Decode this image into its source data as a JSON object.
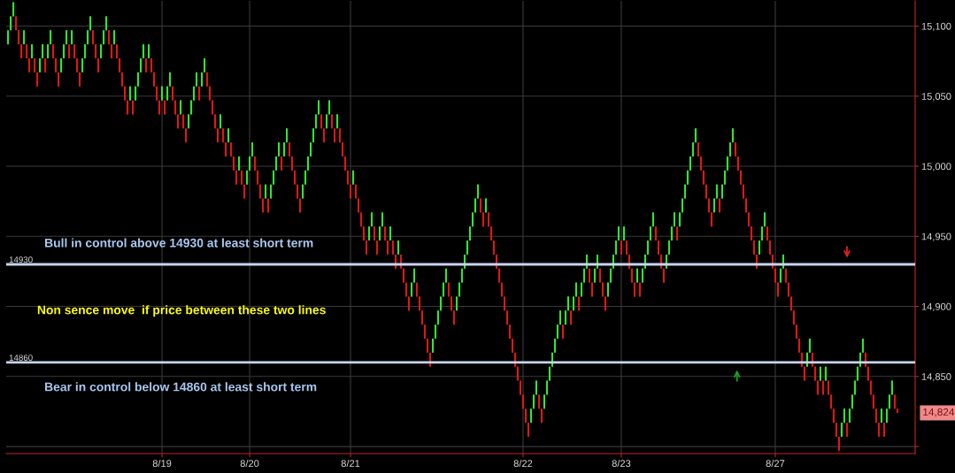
{
  "chart_data": {
    "type": "candlestick",
    "categories": [
      null,
      null,
      null,
      null,
      null,
      null,
      null,
      null,
      null,
      null,
      null,
      null,
      null,
      null,
      null,
      null,
      null,
      null,
      null,
      null,
      null,
      null,
      null,
      null,
      null,
      null,
      null,
      null,
      null,
      null,
      null,
      null,
      null,
      null,
      null,
      null,
      null,
      null,
      null,
      null,
      null,
      null,
      null,
      null,
      null,
      null,
      null,
      null,
      null,
      null,
      null,
      null,
      null,
      null,
      null,
      null,
      null,
      null,
      "8/19",
      null,
      null,
      null,
      null,
      null,
      null,
      null,
      null,
      null,
      null,
      null,
      null,
      null,
      null,
      null,
      null,
      null,
      null,
      null,
      null,
      null,
      null,
      null,
      null,
      null,
      null,
      null,
      null,
      null,
      null,
      null,
      null,
      "8/20",
      null,
      null,
      null,
      null,
      null,
      null,
      null,
      null,
      null,
      null,
      null,
      null,
      null,
      null,
      null,
      null,
      null,
      null,
      null,
      null,
      null,
      null,
      null,
      null,
      null,
      null,
      null,
      null,
      null,
      null,
      null,
      null,
      null,
      null,
      null,
      null,
      null,
      "8/21",
      null,
      null,
      null,
      null,
      null,
      null,
      null,
      null,
      null,
      null,
      null,
      null,
      null,
      null,
      null,
      null,
      null,
      null,
      null,
      null,
      null,
      null,
      null,
      null,
      null,
      null,
      null,
      null,
      null,
      null,
      null,
      null,
      null,
      null,
      null,
      null,
      null,
      null,
      null,
      null,
      null,
      null,
      null,
      null,
      null,
      null,
      null,
      null,
      null,
      null,
      null,
      null,
      null,
      null,
      null,
      null,
      null,
      null,
      null,
      null,
      null,
      null,
      null,
      null,
      "8/22",
      null,
      null,
      null,
      null,
      null,
      null,
      null,
      null,
      null,
      null,
      null,
      null,
      null,
      null,
      null,
      null,
      null,
      null,
      null,
      null,
      null,
      null,
      null,
      null,
      null,
      null,
      null,
      null,
      null,
      null,
      null,
      null,
      null,
      null,
      null,
      null,
      "8/23",
      null,
      null,
      null,
      null,
      null,
      null,
      null,
      null,
      null,
      null,
      null,
      null,
      null,
      null,
      null,
      null,
      null,
      null,
      null,
      null,
      null,
      null,
      null,
      null,
      null,
      null,
      null,
      null,
      null,
      null,
      null,
      null,
      null,
      null,
      null,
      null,
      null,
      null,
      null,
      null,
      null,
      null,
      null,
      null,
      null,
      null,
      null,
      null,
      null,
      null,
      null,
      null,
      null,
      null,
      null,
      null,
      null,
      "8/27",
      null,
      null,
      null,
      null,
      null,
      null,
      null,
      null,
      null,
      null,
      null,
      null,
      null,
      null,
      null,
      null,
      null,
      null,
      null,
      null,
      null,
      null,
      null,
      null,
      null,
      null,
      null,
      null,
      null,
      null,
      null,
      null,
      null,
      null,
      null,
      null,
      null,
      null,
      null,
      null,
      null,
      null,
      null,
      null,
      null,
      null
    ],
    "ohlc": [
      [
        15087,
        15097,
        15087,
        15097
      ],
      [
        15097,
        15107,
        15097,
        15107
      ],
      [
        15107,
        15117,
        15107,
        15117
      ],
      [
        15107,
        15107,
        15097,
        15097
      ],
      [
        15097,
        15097,
        15087,
        15087
      ],
      [
        15087,
        15087,
        15077,
        15077
      ],
      [
        15087,
        15097,
        15087,
        15097
      ],
      [
        15087,
        15087,
        15077,
        15077
      ],
      [
        15077,
        15077,
        15067,
        15067
      ],
      [
        15077,
        15087,
        15077,
        15087
      ],
      [
        15077,
        15077,
        15067,
        15067
      ],
      [
        15067,
        15067,
        15057,
        15057
      ],
      [
        15067,
        15077,
        15067,
        15077
      ],
      [
        15077,
        15087,
        15077,
        15087
      ],
      [
        15077,
        15077,
        15067,
        15067
      ],
      [
        15077,
        15087,
        15077,
        15087
      ],
      [
        15087,
        15097,
        15087,
        15097
      ],
      [
        15087,
        15087,
        15077,
        15077
      ],
      [
        15077,
        15077,
        15067,
        15067
      ],
      [
        15067,
        15067,
        15057,
        15057
      ],
      [
        15067,
        15077,
        15067,
        15077
      ],
      [
        15077,
        15087,
        15077,
        15087
      ],
      [
        15087,
        15097,
        15087,
        15097
      ],
      [
        15087,
        15087,
        15077,
        15077
      ],
      [
        15087,
        15097,
        15087,
        15097
      ],
      [
        15087,
        15087,
        15077,
        15077
      ],
      [
        15077,
        15077,
        15067,
        15067
      ],
      [
        15067,
        15067,
        15057,
        15057
      ],
      [
        15067,
        15077,
        15067,
        15077
      ],
      [
        15077,
        15087,
        15077,
        15087
      ],
      [
        15087,
        15097,
        15087,
        15097
      ],
      [
        15097,
        15107,
        15097,
        15107
      ],
      [
        15097,
        15097,
        15087,
        15087
      ],
      [
        15087,
        15087,
        15077,
        15077
      ],
      [
        15077,
        15077,
        15067,
        15067
      ],
      [
        15077,
        15087,
        15077,
        15087
      ],
      [
        15087,
        15097,
        15087,
        15097
      ],
      [
        15097,
        15107,
        15097,
        15107
      ],
      [
        15097,
        15097,
        15087,
        15087
      ],
      [
        15087,
        15087,
        15077,
        15077
      ],
      [
        15087,
        15097,
        15087,
        15097
      ],
      [
        15087,
        15087,
        15077,
        15077
      ],
      [
        15077,
        15077,
        15067,
        15067
      ],
      [
        15067,
        15067,
        15057,
        15057
      ],
      [
        15057,
        15057,
        15047,
        15047
      ],
      [
        15047,
        15047,
        15037,
        15037
      ],
      [
        15047,
        15057,
        15047,
        15057
      ],
      [
        15047,
        15047,
        15037,
        15037
      ],
      [
        15047,
        15057,
        15047,
        15057
      ],
      [
        15057,
        15067,
        15057,
        15067
      ],
      [
        15067,
        15077,
        15067,
        15077
      ],
      [
        15077,
        15087,
        15077,
        15087
      ],
      [
        15077,
        15077,
        15067,
        15067
      ],
      [
        15077,
        15087,
        15077,
        15087
      ],
      [
        15077,
        15077,
        15067,
        15067
      ],
      [
        15067,
        15067,
        15057,
        15057
      ],
      [
        15057,
        15057,
        15047,
        15047
      ],
      [
        15047,
        15047,
        15037,
        15037
      ],
      [
        15047,
        15057,
        15047,
        15057
      ],
      [
        15047,
        15047,
        15037,
        15037
      ],
      [
        15047,
        15057,
        15047,
        15057
      ],
      [
        15057,
        15067,
        15057,
        15067
      ],
      [
        15057,
        15057,
        15047,
        15047
      ],
      [
        15047,
        15047,
        15037,
        15037
      ],
      [
        15037,
        15037,
        15027,
        15027
      ],
      [
        15037,
        15047,
        15037,
        15047
      ],
      [
        15037,
        15037,
        15027,
        15027
      ],
      [
        15027,
        15027,
        15017,
        15017
      ],
      [
        15027,
        15037,
        15027,
        15037
      ],
      [
        15037,
        15047,
        15037,
        15047
      ],
      [
        15047,
        15057,
        15047,
        15057
      ],
      [
        15057,
        15067,
        15057,
        15067
      ],
      [
        15057,
        15057,
        15047,
        15047
      ],
      [
        15057,
        15067,
        15057,
        15067
      ],
      [
        15067,
        15077,
        15067,
        15077
      ],
      [
        15067,
        15067,
        15057,
        15057
      ],
      [
        15057,
        15057,
        15047,
        15047
      ],
      [
        15047,
        15047,
        15037,
        15037
      ],
      [
        15037,
        15037,
        15027,
        15027
      ],
      [
        15027,
        15027,
        15017,
        15017
      ],
      [
        15027,
        15037,
        15027,
        15037
      ],
      [
        15027,
        15027,
        15017,
        15017
      ],
      [
        15017,
        15017,
        15007,
        15007
      ],
      [
        15017,
        15027,
        15017,
        15027
      ],
      [
        15017,
        15017,
        15007,
        15007
      ],
      [
        15007,
        15007,
        14997,
        14997
      ],
      [
        14997,
        14997,
        14987,
        14987
      ],
      [
        14997,
        15007,
        14997,
        15007
      ],
      [
        14997,
        14997,
        14987,
        14987
      ],
      [
        14987,
        14987,
        14977,
        14977
      ],
      [
        14987,
        14997,
        14987,
        14997
      ],
      [
        14997,
        15007,
        14997,
        15007
      ],
      [
        15007,
        15017,
        15007,
        15017
      ],
      [
        15007,
        15007,
        14997,
        14997
      ],
      [
        14997,
        14997,
        14987,
        14987
      ],
      [
        14987,
        14987,
        14977,
        14977
      ],
      [
        14977,
        14977,
        14967,
        14967
      ],
      [
        14977,
        14987,
        14977,
        14987
      ],
      [
        14977,
        14977,
        14967,
        14967
      ],
      [
        14977,
        14987,
        14977,
        14987
      ],
      [
        14987,
        14997,
        14987,
        14997
      ],
      [
        14997,
        15007,
        14997,
        15007
      ],
      [
        15007,
        15017,
        15007,
        15017
      ],
      [
        15007,
        15007,
        14997,
        14997
      ],
      [
        15007,
        15017,
        15007,
        15017
      ],
      [
        15017,
        15027,
        15017,
        15027
      ],
      [
        15017,
        15017,
        15007,
        15007
      ],
      [
        15007,
        15007,
        14997,
        14997
      ],
      [
        14997,
        14997,
        14987,
        14987
      ],
      [
        14987,
        14987,
        14977,
        14977
      ],
      [
        14977,
        14977,
        14967,
        14967
      ],
      [
        14977,
        14987,
        14977,
        14987
      ],
      [
        14987,
        14997,
        14987,
        14997
      ],
      [
        14997,
        15007,
        14997,
        15007
      ],
      [
        15007,
        15017,
        15007,
        15017
      ],
      [
        15017,
        15027,
        15017,
        15027
      ],
      [
        15027,
        15037,
        15027,
        15037
      ],
      [
        15037,
        15047,
        15037,
        15047
      ],
      [
        15037,
        15037,
        15027,
        15027
      ],
      [
        15027,
        15027,
        15017,
        15017
      ],
      [
        15027,
        15037,
        15027,
        15037
      ],
      [
        15037,
        15047,
        15037,
        15047
      ],
      [
        15037,
        15037,
        15027,
        15027
      ],
      [
        15027,
        15027,
        15017,
        15017
      ],
      [
        15027,
        15037,
        15027,
        15037
      ],
      [
        15027,
        15027,
        15017,
        15017
      ],
      [
        15017,
        15017,
        15007,
        15007
      ],
      [
        15007,
        15007,
        14997,
        14997
      ],
      [
        14997,
        14997,
        14987,
        14987
      ],
      [
        14987,
        14987,
        14977,
        14977
      ],
      [
        14987,
        14997,
        14987,
        14997
      ],
      [
        14987,
        14987,
        14977,
        14977
      ],
      [
        14977,
        14977,
        14967,
        14967
      ],
      [
        14967,
        14967,
        14957,
        14957
      ],
      [
        14957,
        14957,
        14947,
        14947
      ],
      [
        14947,
        14947,
        14937,
        14937
      ],
      [
        14947,
        14957,
        14947,
        14957
      ],
      [
        14957,
        14967,
        14957,
        14967
      ],
      [
        14957,
        14957,
        14947,
        14947
      ],
      [
        14947,
        14947,
        14937,
        14937
      ],
      [
        14947,
        14957,
        14947,
        14957
      ],
      [
        14957,
        14967,
        14957,
        14967
      ],
      [
        14957,
        14957,
        14947,
        14947
      ],
      [
        14947,
        14947,
        14937,
        14937
      ],
      [
        14947,
        14957,
        14947,
        14957
      ],
      [
        14947,
        14947,
        14937,
        14937
      ],
      [
        14937,
        14937,
        14927,
        14927
      ],
      [
        14937,
        14947,
        14937,
        14947
      ],
      [
        14937,
        14937,
        14927,
        14927
      ],
      [
        14927,
        14927,
        14917,
        14917
      ],
      [
        14917,
        14917,
        14907,
        14907
      ],
      [
        14907,
        14907,
        14897,
        14897
      ],
      [
        14907,
        14917,
        14907,
        14917
      ],
      [
        14917,
        14927,
        14917,
        14927
      ],
      [
        14917,
        14917,
        14907,
        14907
      ],
      [
        14907,
        14907,
        14897,
        14897
      ],
      [
        14897,
        14897,
        14887,
        14887
      ],
      [
        14887,
        14887,
        14877,
        14877
      ],
      [
        14877,
        14877,
        14867,
        14867
      ],
      [
        14867,
        14867,
        14857,
        14857
      ],
      [
        14867,
        14877,
        14867,
        14877
      ],
      [
        14877,
        14887,
        14877,
        14887
      ],
      [
        14887,
        14897,
        14887,
        14897
      ],
      [
        14897,
        14907,
        14897,
        14907
      ],
      [
        14907,
        14917,
        14907,
        14917
      ],
      [
        14917,
        14927,
        14917,
        14927
      ],
      [
        14917,
        14917,
        14907,
        14907
      ],
      [
        14907,
        14907,
        14897,
        14897
      ],
      [
        14897,
        14897,
        14887,
        14887
      ],
      [
        14897,
        14907,
        14897,
        14907
      ],
      [
        14907,
        14917,
        14907,
        14917
      ],
      [
        14917,
        14927,
        14917,
        14927
      ],
      [
        14927,
        14937,
        14927,
        14937
      ],
      [
        14937,
        14947,
        14937,
        14947
      ],
      [
        14947,
        14957,
        14947,
        14957
      ],
      [
        14957,
        14967,
        14957,
        14967
      ],
      [
        14967,
        14977,
        14967,
        14977
      ],
      [
        14977,
        14987,
        14977,
        14987
      ],
      [
        14977,
        14977,
        14967,
        14967
      ],
      [
        14967,
        14967,
        14957,
        14957
      ],
      [
        14967,
        14977,
        14967,
        14977
      ],
      [
        14967,
        14967,
        14957,
        14957
      ],
      [
        14957,
        14957,
        14947,
        14947
      ],
      [
        14947,
        14947,
        14937,
        14937
      ],
      [
        14937,
        14937,
        14927,
        14927
      ],
      [
        14927,
        14927,
        14917,
        14917
      ],
      [
        14917,
        14917,
        14907,
        14907
      ],
      [
        14907,
        14907,
        14897,
        14897
      ],
      [
        14897,
        14897,
        14887,
        14887
      ],
      [
        14887,
        14887,
        14877,
        14877
      ],
      [
        14877,
        14877,
        14867,
        14867
      ],
      [
        14867,
        14867,
        14857,
        14857
      ],
      [
        14857,
        14857,
        14847,
        14847
      ],
      [
        14847,
        14847,
        14837,
        14837
      ],
      [
        14837,
        14837,
        14827,
        14827
      ],
      [
        14827,
        14827,
        14817,
        14817
      ],
      [
        14817,
        14817,
        14807,
        14807
      ],
      [
        14817,
        14827,
        14817,
        14827
      ],
      [
        14827,
        14837,
        14827,
        14837
      ],
      [
        14837,
        14847,
        14837,
        14847
      ],
      [
        14837,
        14837,
        14827,
        14827
      ],
      [
        14827,
        14827,
        14817,
        14817
      ],
      [
        14827,
        14837,
        14827,
        14837
      ],
      [
        14837,
        14847,
        14837,
        14847
      ],
      [
        14847,
        14857,
        14847,
        14857
      ],
      [
        14857,
        14867,
        14857,
        14867
      ],
      [
        14867,
        14877,
        14867,
        14877
      ],
      [
        14877,
        14887,
        14877,
        14887
      ],
      [
        14887,
        14897,
        14887,
        14897
      ],
      [
        14887,
        14887,
        14877,
        14877
      ],
      [
        14887,
        14897,
        14887,
        14897
      ],
      [
        14897,
        14907,
        14897,
        14907
      ],
      [
        14897,
        14897,
        14887,
        14887
      ],
      [
        14897,
        14907,
        14897,
        14907
      ],
      [
        14907,
        14917,
        14907,
        14917
      ],
      [
        14907,
        14907,
        14897,
        14897
      ],
      [
        14907,
        14917,
        14907,
        14917
      ],
      [
        14917,
        14927,
        14917,
        14927
      ],
      [
        14927,
        14937,
        14927,
        14937
      ],
      [
        14927,
        14927,
        14917,
        14917
      ],
      [
        14917,
        14917,
        14907,
        14907
      ],
      [
        14917,
        14927,
        14917,
        14927
      ],
      [
        14927,
        14937,
        14927,
        14937
      ],
      [
        14927,
        14927,
        14917,
        14917
      ],
      [
        14917,
        14917,
        14907,
        14907
      ],
      [
        14907,
        14907,
        14897,
        14897
      ],
      [
        14907,
        14917,
        14907,
        14917
      ],
      [
        14917,
        14927,
        14917,
        14927
      ],
      [
        14927,
        14937,
        14927,
        14937
      ],
      [
        14937,
        14947,
        14937,
        14947
      ],
      [
        14947,
        14957,
        14947,
        14957
      ],
      [
        14947,
        14947,
        14937,
        14937
      ],
      [
        14947,
        14957,
        14947,
        14957
      ],
      [
        14947,
        14947,
        14937,
        14937
      ],
      [
        14937,
        14937,
        14927,
        14927
      ],
      [
        14927,
        14927,
        14917,
        14917
      ],
      [
        14917,
        14917,
        14907,
        14907
      ],
      [
        14917,
        14927,
        14917,
        14927
      ],
      [
        14917,
        14917,
        14907,
        14907
      ],
      [
        14917,
        14927,
        14917,
        14927
      ],
      [
        14927,
        14937,
        14927,
        14937
      ],
      [
        14937,
        14947,
        14937,
        14947
      ],
      [
        14947,
        14957,
        14947,
        14957
      ],
      [
        14957,
        14967,
        14957,
        14967
      ],
      [
        14957,
        14957,
        14947,
        14947
      ],
      [
        14947,
        14947,
        14937,
        14937
      ],
      [
        14937,
        14937,
        14927,
        14927
      ],
      [
        14927,
        14927,
        14917,
        14917
      ],
      [
        14927,
        14937,
        14927,
        14937
      ],
      [
        14937,
        14947,
        14937,
        14947
      ],
      [
        14947,
        14957,
        14947,
        14957
      ],
      [
        14957,
        14967,
        14957,
        14967
      ],
      [
        14957,
        14957,
        14947,
        14947
      ],
      [
        14957,
        14967,
        14957,
        14967
      ],
      [
        14967,
        14977,
        14967,
        14977
      ],
      [
        14977,
        14987,
        14977,
        14987
      ],
      [
        14987,
        14997,
        14987,
        14997
      ],
      [
        14997,
        15007,
        14997,
        15007
      ],
      [
        15007,
        15017,
        15007,
        15017
      ],
      [
        15017,
        15027,
        15017,
        15027
      ],
      [
        15017,
        15017,
        15007,
        15007
      ],
      [
        15007,
        15007,
        14997,
        14997
      ],
      [
        14997,
        14997,
        14987,
        14987
      ],
      [
        14987,
        14987,
        14977,
        14977
      ],
      [
        14977,
        14977,
        14967,
        14967
      ],
      [
        14967,
        14967,
        14957,
        14957
      ],
      [
        14967,
        14977,
        14967,
        14977
      ],
      [
        14977,
        14987,
        14977,
        14987
      ],
      [
        14977,
        14977,
        14967,
        14967
      ],
      [
        14977,
        14987,
        14977,
        14987
      ],
      [
        14987,
        14997,
        14987,
        14997
      ],
      [
        14997,
        15007,
        14997,
        15007
      ],
      [
        15007,
        15017,
        15007,
        15017
      ],
      [
        15017,
        15027,
        15017,
        15027
      ],
      [
        15017,
        15017,
        15007,
        15007
      ],
      [
        15007,
        15007,
        14997,
        14997
      ],
      [
        14997,
        14997,
        14987,
        14987
      ],
      [
        14987,
        14987,
        14977,
        14977
      ],
      [
        14977,
        14977,
        14967,
        14967
      ],
      [
        14967,
        14967,
        14957,
        14957
      ],
      [
        14957,
        14957,
        14947,
        14947
      ],
      [
        14947,
        14947,
        14937,
        14937
      ],
      [
        14937,
        14937,
        14927,
        14927
      ],
      [
        14937,
        14947,
        14937,
        14947
      ],
      [
        14947,
        14957,
        14947,
        14957
      ],
      [
        14957,
        14967,
        14957,
        14967
      ],
      [
        14957,
        14957,
        14947,
        14947
      ],
      [
        14947,
        14947,
        14937,
        14937
      ],
      [
        14937,
        14937,
        14927,
        14927
      ],
      [
        14927,
        14927,
        14917,
        14917
      ],
      [
        14917,
        14917,
        14907,
        14907
      ],
      [
        14917,
        14927,
        14917,
        14927
      ],
      [
        14927,
        14937,
        14927,
        14937
      ],
      [
        14927,
        14927,
        14917,
        14917
      ],
      [
        14917,
        14917,
        14907,
        14907
      ],
      [
        14907,
        14907,
        14897,
        14897
      ],
      [
        14897,
        14897,
        14887,
        14887
      ],
      [
        14887,
        14887,
        14877,
        14877
      ],
      [
        14877,
        14877,
        14867,
        14867
      ],
      [
        14867,
        14867,
        14857,
        14857
      ],
      [
        14857,
        14857,
        14847,
        14847
      ],
      [
        14857,
        14867,
        14857,
        14867
      ],
      [
        14867,
        14877,
        14867,
        14877
      ],
      [
        14867,
        14867,
        14857,
        14857
      ],
      [
        14857,
        14857,
        14847,
        14847
      ],
      [
        14847,
        14847,
        14837,
        14837
      ],
      [
        14847,
        14857,
        14847,
        14857
      ],
      [
        14847,
        14847,
        14837,
        14837
      ],
      [
        14847,
        14857,
        14847,
        14857
      ],
      [
        14847,
        14847,
        14837,
        14837
      ],
      [
        14837,
        14837,
        14827,
        14827
      ],
      [
        14827,
        14827,
        14817,
        14817
      ],
      [
        14817,
        14817,
        14807,
        14807
      ],
      [
        14807,
        14807,
        14797,
        14797
      ],
      [
        14807,
        14817,
        14807,
        14817
      ],
      [
        14817,
        14827,
        14817,
        14827
      ],
      [
        14817,
        14817,
        14807,
        14807
      ],
      [
        14817,
        14827,
        14817,
        14827
      ],
      [
        14827,
        14837,
        14827,
        14837
      ],
      [
        14837,
        14847,
        14837,
        14847
      ],
      [
        14847,
        14857,
        14847,
        14857
      ],
      [
        14857,
        14867,
        14857,
        14867
      ],
      [
        14867,
        14877,
        14867,
        14877
      ],
      [
        14867,
        14867,
        14857,
        14857
      ],
      [
        14857,
        14857,
        14847,
        14847
      ],
      [
        14847,
        14847,
        14837,
        14837
      ],
      [
        14837,
        14837,
        14827,
        14827
      ],
      [
        14827,
        14827,
        14817,
        14817
      ],
      [
        14817,
        14817,
        14807,
        14807
      ],
      [
        14817,
        14827,
        14817,
        14827
      ],
      [
        14817,
        14817,
        14807,
        14807
      ],
      [
        14817,
        14827,
        14817,
        14827
      ],
      [
        14827,
        14837,
        14827,
        14837
      ],
      [
        14837,
        14847,
        14837,
        14847
      ],
      [
        14837,
        14837,
        14827,
        14827
      ],
      [
        14827,
        14827,
        14824,
        14824
      ]
    ],
    "ylim": [
      14795,
      15118
    ],
    "yticks": [
      {
        "value": 14800,
        "label": null
      },
      {
        "value": 14850,
        "label": "14,850"
      },
      {
        "value": 14900,
        "label": "14,900"
      },
      {
        "value": 14950,
        "label": "14,950"
      },
      {
        "value": 15000,
        "label": "15,000"
      },
      {
        "value": 15050,
        "label": "15,050"
      },
      {
        "value": 15100,
        "label": "15,100"
      }
    ],
    "grid": true,
    "ref_lines": [
      {
        "axis": "y",
        "value": 14930,
        "label": "14930",
        "color": "#c8d4ee"
      },
      {
        "axis": "y",
        "value": 14860,
        "label": "14860",
        "color": "#c8d4ee"
      }
    ],
    "annotations": [
      "Bull in control above 14930 at least short term",
      "Non sence move  if price between these two lines",
      "Bear in control below 14860 at least short term",
      "14,824"
    ]
  }
}
